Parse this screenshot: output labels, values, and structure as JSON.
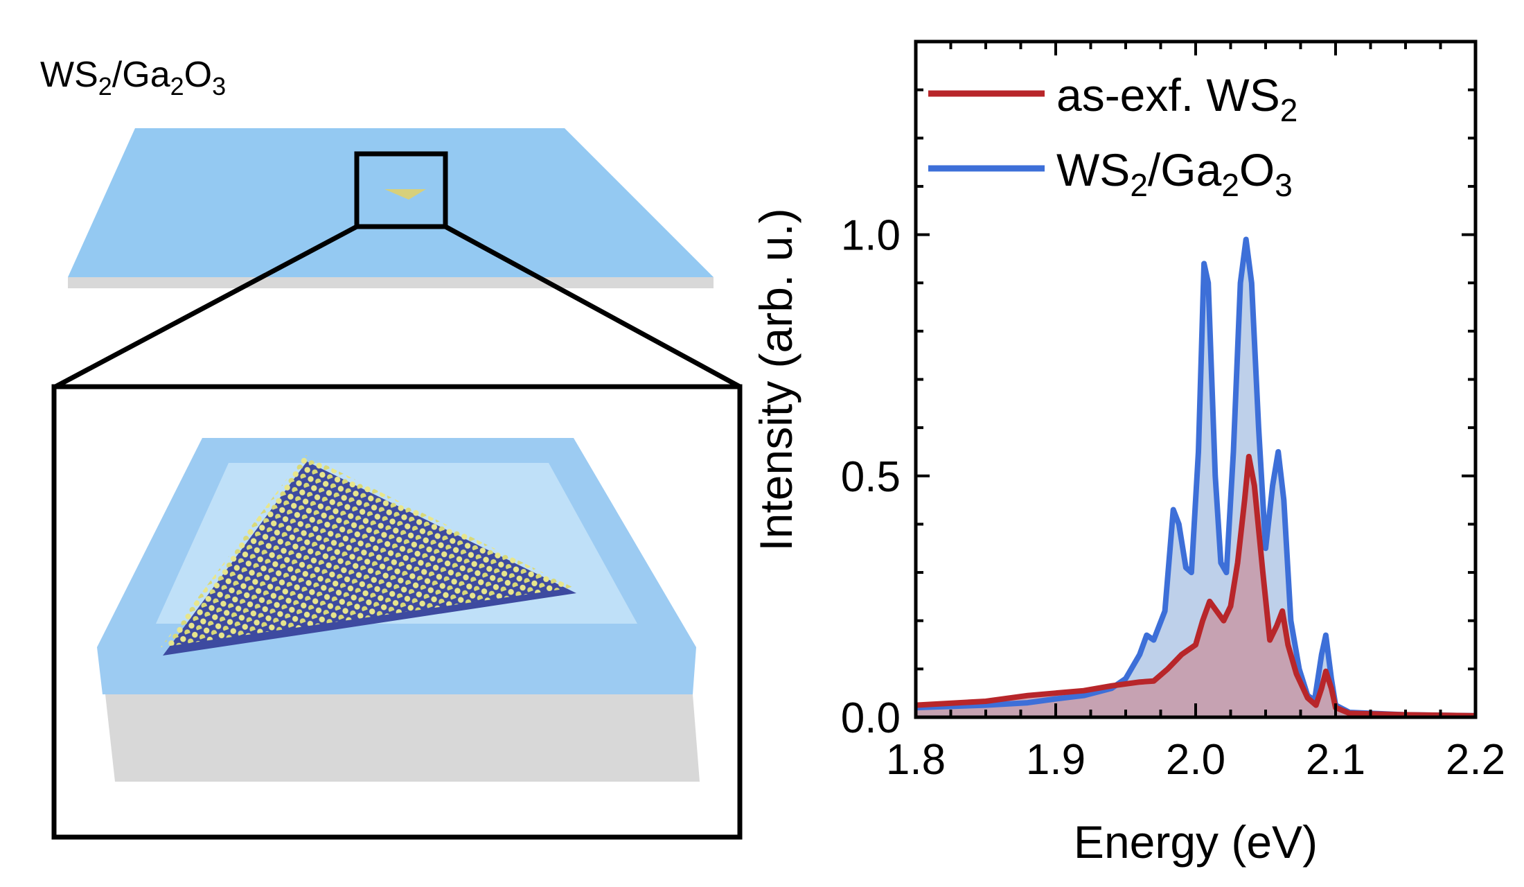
{
  "schematic": {
    "label_main": "WS",
    "label_sub1": "2",
    "label_mid": "/Ga",
    "label_sub2": "2",
    "label_o": "O",
    "label_sub3": "3",
    "substrate_color": "#94c9f2",
    "substrate_side_color": "#d8d8d8",
    "flake_top_color": "#e6e48a",
    "flake_bottom_color": "#3d4aa0"
  },
  "chart_data": {
    "type": "area",
    "xlabel": "Energy (eV)",
    "ylabel": "Intensity (arb. u.)",
    "xlim": [
      1.8,
      2.2
    ],
    "ylim": [
      0.0,
      1.4
    ],
    "xticks": [
      1.8,
      1.9,
      2.0,
      2.1,
      2.2
    ],
    "xtick_labels": [
      "1.8",
      "1.9",
      "2.0",
      "2.1",
      "2.2"
    ],
    "yticks": [
      0.0,
      0.5,
      1.0
    ],
    "ytick_labels": [
      "0.0",
      "0.5",
      "1.0"
    ],
    "grid": false,
    "legend_position": "top-left",
    "series": [
      {
        "name_main": "as-exf. WS",
        "name_sub": "2",
        "color": "#b8262a",
        "fill": "#c89aa8",
        "points": [
          [
            1.8,
            0.025
          ],
          [
            1.85,
            0.033
          ],
          [
            1.88,
            0.045
          ],
          [
            1.9,
            0.05
          ],
          [
            1.92,
            0.055
          ],
          [
            1.94,
            0.065
          ],
          [
            1.96,
            0.073
          ],
          [
            1.97,
            0.075
          ],
          [
            1.98,
            0.1
          ],
          [
            1.99,
            0.13
          ],
          [
            2.0,
            0.15
          ],
          [
            2.005,
            0.2
          ],
          [
            2.01,
            0.24
          ],
          [
            2.015,
            0.22
          ],
          [
            2.02,
            0.2
          ],
          [
            2.025,
            0.23
          ],
          [
            2.03,
            0.32
          ],
          [
            2.035,
            0.45
          ],
          [
            2.038,
            0.54
          ],
          [
            2.042,
            0.48
          ],
          [
            2.048,
            0.3
          ],
          [
            2.053,
            0.16
          ],
          [
            2.058,
            0.19
          ],
          [
            2.062,
            0.22
          ],
          [
            2.066,
            0.15
          ],
          [
            2.072,
            0.09
          ],
          [
            2.08,
            0.04
          ],
          [
            2.086,
            0.025
          ],
          [
            2.09,
            0.06
          ],
          [
            2.093,
            0.095
          ],
          [
            2.097,
            0.06
          ],
          [
            2.1,
            0.02
          ],
          [
            2.11,
            0.008
          ],
          [
            2.15,
            0.005
          ],
          [
            2.2,
            0.003
          ]
        ]
      },
      {
        "name_main": "WS",
        "name_sub1": "2",
        "name_mid": "/Ga",
        "name_sub2": "2",
        "name_o": "O",
        "name_sub3": "3",
        "color": "#3d6fd8",
        "fill": "#b7cbe8",
        "points": [
          [
            1.8,
            0.02
          ],
          [
            1.85,
            0.025
          ],
          [
            1.88,
            0.03
          ],
          [
            1.9,
            0.038
          ],
          [
            1.92,
            0.045
          ],
          [
            1.94,
            0.06
          ],
          [
            1.95,
            0.08
          ],
          [
            1.96,
            0.13
          ],
          [
            1.965,
            0.17
          ],
          [
            1.97,
            0.16
          ],
          [
            1.978,
            0.22
          ],
          [
            1.984,
            0.43
          ],
          [
            1.988,
            0.4
          ],
          [
            1.993,
            0.31
          ],
          [
            1.997,
            0.3
          ],
          [
            2.002,
            0.55
          ],
          [
            2.006,
            0.94
          ],
          [
            2.009,
            0.9
          ],
          [
            2.014,
            0.5
          ],
          [
            2.018,
            0.32
          ],
          [
            2.022,
            0.3
          ],
          [
            2.027,
            0.55
          ],
          [
            2.032,
            0.9
          ],
          [
            2.036,
            0.99
          ],
          [
            2.04,
            0.9
          ],
          [
            2.045,
            0.6
          ],
          [
            2.05,
            0.35
          ],
          [
            2.055,
            0.48
          ],
          [
            2.059,
            0.55
          ],
          [
            2.063,
            0.45
          ],
          [
            2.068,
            0.2
          ],
          [
            2.074,
            0.1
          ],
          [
            2.08,
            0.045
          ],
          [
            2.085,
            0.035
          ],
          [
            2.09,
            0.13
          ],
          [
            2.093,
            0.17
          ],
          [
            2.097,
            0.08
          ],
          [
            2.1,
            0.025
          ],
          [
            2.11,
            0.01
          ],
          [
            2.15,
            0.005
          ],
          [
            2.2,
            0.003
          ]
        ]
      }
    ]
  }
}
